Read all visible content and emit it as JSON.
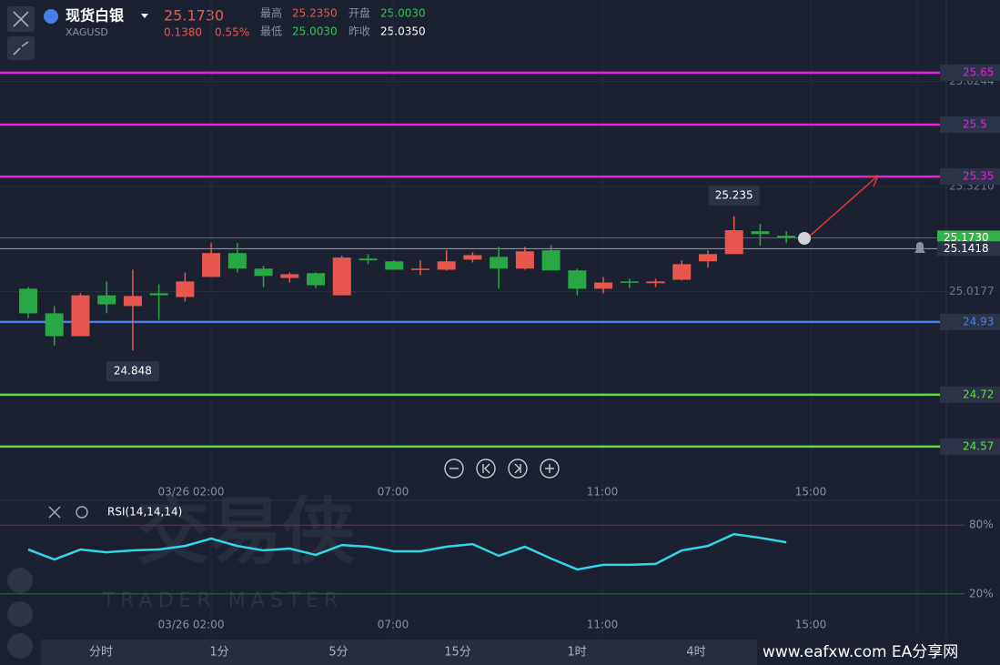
{
  "header": {
    "name": "现货白银",
    "symbol": "XAGUSD",
    "price": "25.1730",
    "change": "0.1380",
    "change_pct": "0.55%",
    "stats": [
      {
        "label": "最高",
        "value": "25.2350"
      },
      {
        "label": "开盘",
        "value": "25.0030"
      },
      {
        "label": "最低",
        "value": "25.0030"
      },
      {
        "label": "昨收",
        "value": "25.0350"
      }
    ]
  },
  "chart_data": {
    "type": "candlestick",
    "ylim": [
      24.42,
      25.86
    ],
    "yticks": [
      25.6244,
      {
        "value": 25.321,
        "label": "25.3210"
      },
      25.0177
    ],
    "up_color": "#e8574e",
    "down_color": "#28a745",
    "open": [
      25.026,
      24.955,
      24.889,
      25.007,
      24.976,
      25.013,
      25.002,
      25.06,
      25.129,
      25.084,
      25.057,
      25.071,
      25.007,
      25.113,
      25.105,
      25.081,
      25.081,
      25.11,
      25.118,
      25.084,
      25.137,
      25.079,
      25.026,
      25.047,
      25.042,
      25.052,
      25.105,
      25.126,
      25.192,
      25.179
    ],
    "high": [
      25.031,
      24.976,
      25.013,
      25.047,
      25.081,
      25.039,
      25.073,
      25.158,
      25.158,
      25.092,
      25.073,
      25.073,
      25.121,
      25.126,
      25.108,
      25.108,
      25.137,
      25.131,
      25.147,
      25.147,
      25.152,
      25.084,
      25.06,
      25.055,
      25.055,
      25.108,
      25.137,
      25.235,
      25.213,
      25.192
    ],
    "low": [
      24.941,
      24.862,
      24.889,
      24.955,
      24.848,
      24.936,
      24.989,
      25.06,
      25.073,
      25.031,
      25.044,
      25.028,
      25.007,
      25.097,
      25.081,
      25.065,
      25.079,
      25.102,
      25.026,
      25.081,
      25.079,
      25.007,
      25.013,
      25.028,
      25.031,
      25.05,
      25.087,
      25.126,
      25.15,
      25.158
    ],
    "close": [
      24.955,
      24.889,
      25.007,
      24.981,
      25.005,
      25.007,
      25.047,
      25.129,
      25.084,
      25.063,
      25.068,
      25.036,
      25.116,
      25.108,
      25.081,
      25.084,
      25.105,
      25.123,
      25.084,
      25.134,
      25.079,
      25.026,
      25.044,
      25.044,
      25.047,
      25.097,
      25.126,
      25.195,
      25.184,
      25.173
    ],
    "high_label": "25.235",
    "low_label": "24.848",
    "levels": [
      {
        "value": 25.65,
        "color": "#e21fe2"
      },
      {
        "value": 25.5,
        "color": "#e21fe2"
      },
      {
        "value": 25.35,
        "color": "#e21fe2"
      },
      {
        "value": 24.93,
        "color": "#4a7ee6"
      },
      {
        "value": 24.72,
        "color": "#5fe03c"
      },
      {
        "value": 24.57,
        "color": "#5fe03c"
      }
    ],
    "price_tags": [
      {
        "value": 25.173,
        "label": "25.1730",
        "color": "#34b34a"
      },
      {
        "value": 25.1418,
        "color": "#2b3346"
      }
    ],
    "time_labels": [
      "03/26 02:00",
      "07:00",
      "11:00",
      "15:00"
    ],
    "rsi": {
      "label": "RSI(14,14,14)",
      "color": "#33d6e8",
      "ylim": [
        0,
        100
      ],
      "yticks": [
        {
          "value": 80,
          "label": "80%"
        },
        {
          "value": 20,
          "label": "20%"
        }
      ],
      "values": [
        58.7,
        50.0,
        58.7,
        56.3,
        57.9,
        58.7,
        61.8,
        68.2,
        61.8,
        57.9,
        59.5,
        54.0,
        62.6,
        61.1,
        57.1,
        57.1,
        61.1,
        63.4,
        53.2,
        61.1,
        50.8,
        41.3,
        45.3,
        45.3,
        46.1,
        57.9,
        61.8,
        72.1,
        68.9,
        65.0
      ]
    }
  },
  "watermark": {
    "brand": "交易侠",
    "sub": "TRADER MASTER"
  },
  "tabs": [
    "分时",
    "1分",
    "5分",
    "15分",
    "1时",
    "4时"
  ],
  "footer": "www.eafxw.com  EA分享网"
}
